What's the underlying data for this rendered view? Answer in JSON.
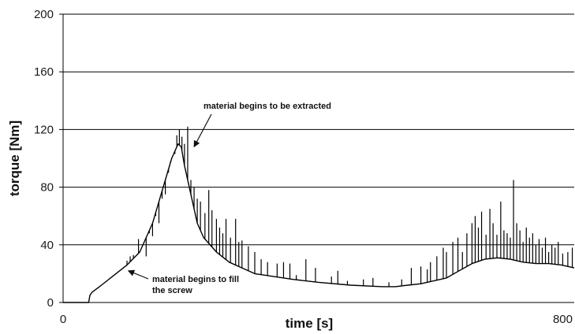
{
  "chart_data": {
    "type": "line",
    "title": "",
    "xlabel": "time [s]",
    "ylabel": "torque [Nm]",
    "xlim": [
      0,
      800
    ],
    "ylim": [
      0,
      200
    ],
    "x_ticks": [
      "0",
      "800"
    ],
    "y_ticks": [
      "0",
      "40",
      "80",
      "120",
      "160",
      "200"
    ],
    "y_tick_values": [
      0,
      40,
      80,
      120,
      160,
      200
    ],
    "grid": "horizontal",
    "legend": "none",
    "line_color": "#000000",
    "series": [
      {
        "baseline": {
          "x": [
            0,
            40,
            42,
            45,
            60,
            80,
            100,
            120,
            140,
            150,
            160,
            170,
            180,
            185,
            190,
            200,
            210,
            220,
            240,
            260,
            280,
            300,
            330,
            360,
            400,
            450,
            500,
            520,
            540,
            560,
            600,
            620,
            640,
            660,
            680,
            700,
            720,
            740,
            760,
            780,
            800
          ],
          "y": [
            0,
            0,
            5,
            7,
            12,
            19,
            26,
            35,
            55,
            70,
            85,
            100,
            110,
            108,
            95,
            75,
            55,
            45,
            35,
            28,
            24,
            20,
            18,
            16,
            14,
            12,
            11,
            11,
            12,
            13,
            17,
            22,
            27,
            30,
            31,
            30,
            28,
            27,
            27,
            26,
            24
          ]
        },
        "spikes": [
          {
            "x": 100,
            "y": 29
          },
          {
            "x": 105,
            "y": 32
          },
          {
            "x": 110,
            "y": 33
          },
          {
            "x": 118,
            "y": 44
          },
          {
            "x": 125,
            "y": 40
          },
          {
            "x": 130,
            "y": 32
          },
          {
            "x": 135,
            "y": 48
          },
          {
            "x": 140,
            "y": 46
          },
          {
            "x": 145,
            "y": 60
          },
          {
            "x": 150,
            "y": 55
          },
          {
            "x": 155,
            "y": 72
          },
          {
            "x": 160,
            "y": 75
          },
          {
            "x": 165,
            "y": 90
          },
          {
            "x": 168,
            "y": 98
          },
          {
            "x": 172,
            "y": 102
          },
          {
            "x": 175,
            "y": 103
          },
          {
            "x": 178,
            "y": 116
          },
          {
            "x": 182,
            "y": 120
          },
          {
            "x": 186,
            "y": 115
          },
          {
            "x": 190,
            "y": 110
          },
          {
            "x": 195,
            "y": 122
          },
          {
            "x": 200,
            "y": 85
          },
          {
            "x": 205,
            "y": 80
          },
          {
            "x": 210,
            "y": 72
          },
          {
            "x": 215,
            "y": 70
          },
          {
            "x": 222,
            "y": 62
          },
          {
            "x": 228,
            "y": 78
          },
          {
            "x": 233,
            "y": 64
          },
          {
            "x": 240,
            "y": 58
          },
          {
            "x": 245,
            "y": 52
          },
          {
            "x": 250,
            "y": 48
          },
          {
            "x": 255,
            "y": 58
          },
          {
            "x": 262,
            "y": 45
          },
          {
            "x": 270,
            "y": 58
          },
          {
            "x": 275,
            "y": 42
          },
          {
            "x": 280,
            "y": 43
          },
          {
            "x": 290,
            "y": 39
          },
          {
            "x": 300,
            "y": 35
          },
          {
            "x": 310,
            "y": 30
          },
          {
            "x": 320,
            "y": 28
          },
          {
            "x": 335,
            "y": 27
          },
          {
            "x": 345,
            "y": 28
          },
          {
            "x": 355,
            "y": 27
          },
          {
            "x": 365,
            "y": 19
          },
          {
            "x": 380,
            "y": 30
          },
          {
            "x": 395,
            "y": 24
          },
          {
            "x": 420,
            "y": 18
          },
          {
            "x": 430,
            "y": 22
          },
          {
            "x": 445,
            "y": 15
          },
          {
            "x": 470,
            "y": 16
          },
          {
            "x": 485,
            "y": 17
          },
          {
            "x": 510,
            "y": 14
          },
          {
            "x": 530,
            "y": 16
          },
          {
            "x": 545,
            "y": 24
          },
          {
            "x": 560,
            "y": 25
          },
          {
            "x": 570,
            "y": 23
          },
          {
            "x": 575,
            "y": 28
          },
          {
            "x": 585,
            "y": 32
          },
          {
            "x": 595,
            "y": 38
          },
          {
            "x": 600,
            "y": 35
          },
          {
            "x": 610,
            "y": 42
          },
          {
            "x": 618,
            "y": 45
          },
          {
            "x": 625,
            "y": 35
          },
          {
            "x": 632,
            "y": 48
          },
          {
            "x": 640,
            "y": 55
          },
          {
            "x": 645,
            "y": 60
          },
          {
            "x": 650,
            "y": 52
          },
          {
            "x": 655,
            "y": 63
          },
          {
            "x": 662,
            "y": 47
          },
          {
            "x": 668,
            "y": 65
          },
          {
            "x": 673,
            "y": 55
          },
          {
            "x": 679,
            "y": 47
          },
          {
            "x": 685,
            "y": 70
          },
          {
            "x": 690,
            "y": 50
          },
          {
            "x": 695,
            "y": 48
          },
          {
            "x": 700,
            "y": 45
          },
          {
            "x": 705,
            "y": 85
          },
          {
            "x": 710,
            "y": 55
          },
          {
            "x": 715,
            "y": 50
          },
          {
            "x": 720,
            "y": 42
          },
          {
            "x": 725,
            "y": 52
          },
          {
            "x": 730,
            "y": 45
          },
          {
            "x": 735,
            "y": 48
          },
          {
            "x": 740,
            "y": 40
          },
          {
            "x": 745,
            "y": 44
          },
          {
            "x": 750,
            "y": 38
          },
          {
            "x": 755,
            "y": 45
          },
          {
            "x": 760,
            "y": 35
          },
          {
            "x": 765,
            "y": 40
          },
          {
            "x": 770,
            "y": 38
          },
          {
            "x": 775,
            "y": 42
          },
          {
            "x": 782,
            "y": 34
          },
          {
            "x": 790,
            "y": 35
          },
          {
            "x": 797,
            "y": 38
          }
        ]
      }
    ],
    "annotations": [
      {
        "lines": [
          "material begins to be extracted"
        ],
        "arrow_to": {
          "x": 205,
          "y": 108
        }
      },
      {
        "lines": [
          "material begins to fill",
          "the screw"
        ],
        "arrow_to": {
          "x": 102,
          "y": 22
        }
      }
    ]
  }
}
